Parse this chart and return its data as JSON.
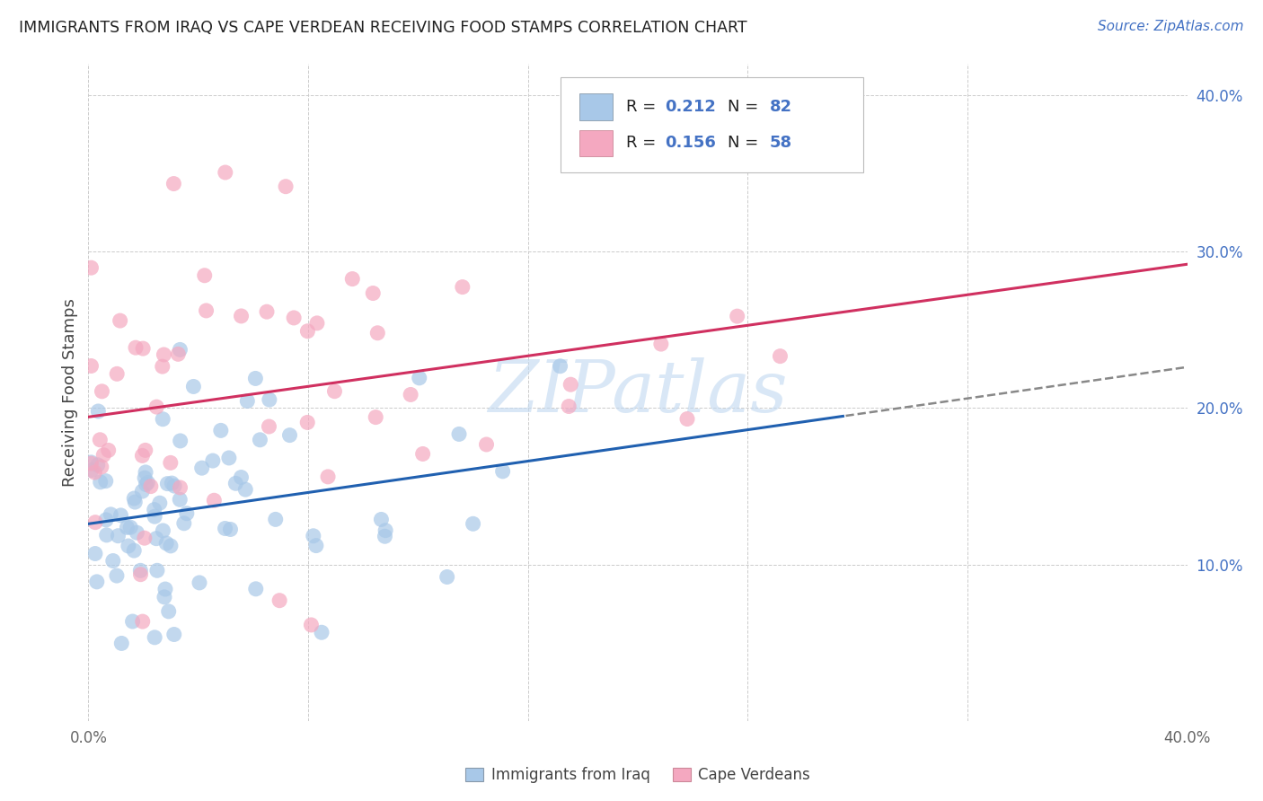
{
  "title": "IMMIGRANTS FROM IRAQ VS CAPE VERDEAN RECEIVING FOOD STAMPS CORRELATION CHART",
  "source": "Source: ZipAtlas.com",
  "ylabel": "Receiving Food Stamps",
  "xlim": [
    0.0,
    0.4
  ],
  "ylim": [
    0.0,
    0.42
  ],
  "iraq_color": "#a8c8e8",
  "cape_color": "#f4a8c0",
  "iraq_line_color": "#2060b0",
  "cape_line_color": "#d03060",
  "iraq_R": 0.212,
  "iraq_N": 82,
  "cape_R": 0.156,
  "cape_N": 58,
  "watermark": "ZIPatlas",
  "background_color": "#ffffff",
  "grid_color": "#cccccc"
}
